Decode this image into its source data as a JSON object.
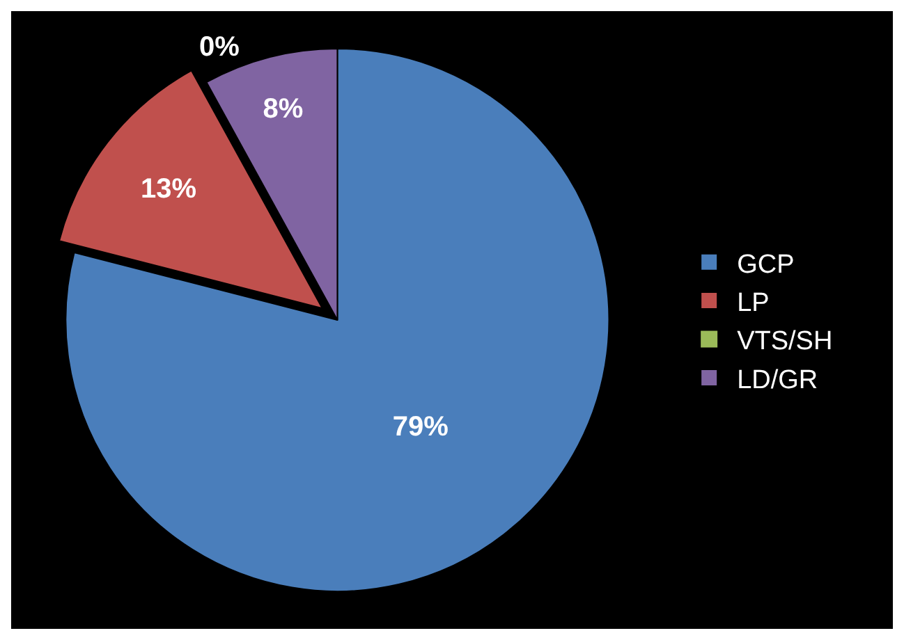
{
  "chart_data": {
    "type": "pie",
    "categories": [
      "GCP",
      "LP",
      "VTS/SH",
      "LD/GR"
    ],
    "values": [
      79,
      13,
      0,
      8
    ],
    "colors": [
      "#4a7ebb",
      "#c0504d",
      "#9bbb59",
      "#8064a2"
    ],
    "value_labels": [
      "79%",
      "13%",
      "0%",
      "8%"
    ],
    "legend": "right"
  }
}
